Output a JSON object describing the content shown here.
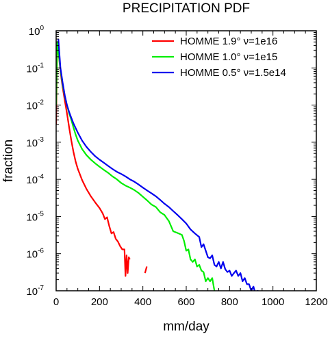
{
  "chart_data": {
    "type": "line",
    "title": "PRECIPITATION PDF",
    "xlabel": "mm/day",
    "ylabel": "fraction",
    "xlim": [
      0,
      1200
    ],
    "ylim": [
      1e-07,
      1
    ],
    "yscale": "log",
    "grid": false,
    "legend_position": "top-right",
    "x_ticks": [
      "0",
      "200",
      "400",
      "600",
      "800",
      "1000",
      "1200"
    ],
    "y_ticks": [
      {
        "base": "10",
        "exp": "0",
        "value": 1
      },
      {
        "base": "10",
        "exp": "-1",
        "value": 0.1
      },
      {
        "base": "10",
        "exp": "-2",
        "value": 0.01
      },
      {
        "base": "10",
        "exp": "-3",
        "value": 0.001
      },
      {
        "base": "10",
        "exp": "-4",
        "value": 0.0001
      },
      {
        "base": "10",
        "exp": "-5",
        "value": 1e-05
      },
      {
        "base": "10",
        "exp": "-6",
        "value": 1e-06
      },
      {
        "base": "10",
        "exp": "-7",
        "value": 1e-07
      }
    ],
    "series": [
      {
        "name": "HOMME 1.9°  ν=1e16",
        "color": "#ff0000",
        "segments": [
          [
            [
              0,
              0.003
            ],
            [
              5,
              0.5
            ],
            [
              10,
              0.3
            ],
            [
              20,
              0.08
            ],
            [
              30,
              0.03
            ],
            [
              40,
              0.013
            ],
            [
              50,
              0.006
            ],
            [
              60,
              0.0025
            ],
            [
              70,
              0.0011
            ],
            [
              80,
              0.00055
            ],
            [
              90,
              0.0003
            ],
            [
              100,
              0.00019
            ],
            [
              120,
              9.5e-05
            ],
            [
              140,
              5.5e-05
            ],
            [
              160,
              3.5e-05
            ],
            [
              180,
              2.4e-05
            ],
            [
              200,
              1.7e-05
            ],
            [
              215,
              1.2e-05
            ],
            [
              225,
              8.5e-06
            ],
            [
              235,
              9.5e-06
            ],
            [
              245,
              5.5e-06
            ],
            [
              255,
              3.5e-06
            ],
            [
              265,
              3.8e-06
            ],
            [
              275,
              2.5e-06
            ],
            [
              285,
              2.1e-06
            ],
            [
              295,
              1.6e-06
            ],
            [
              305,
              1.3e-06
            ],
            [
              315,
              1.3e-06
            ],
            [
              320,
              2.5e-07
            ],
            [
              325,
              9e-07
            ],
            [
              330,
              3e-07
            ],
            [
              335,
              8e-07
            ],
            [
              340,
              7e-07
            ]
          ],
          [
            [
              410,
              3e-07
            ],
            [
              418,
              4.5e-07
            ]
          ]
        ]
      },
      {
        "name": "HOMME 1.0°  ν=1e15",
        "color": "#00ee00",
        "segments": [
          [
            [
              0,
              0.01
            ],
            [
              5,
              0.5
            ],
            [
              10,
              0.3
            ],
            [
              20,
              0.09
            ],
            [
              30,
              0.035
            ],
            [
              40,
              0.017
            ],
            [
              50,
              0.01
            ],
            [
              60,
              0.006
            ],
            [
              70,
              0.004
            ],
            [
              80,
              0.0025
            ],
            [
              90,
              0.0016
            ],
            [
              100,
              0.0011
            ],
            [
              120,
              0.00065
            ],
            [
              140,
              0.00045
            ],
            [
              160,
              0.00034
            ],
            [
              180,
              0.00027
            ],
            [
              200,
              0.00022
            ],
            [
              220,
              0.00018
            ],
            [
              240,
              0.00015
            ],
            [
              260,
              0.00012
            ],
            [
              280,
              0.0001
            ],
            [
              300,
              8e-05
            ],
            [
              320,
              6.8e-05
            ],
            [
              340,
              6e-05
            ],
            [
              360,
              5.2e-05
            ],
            [
              380,
              4.3e-05
            ],
            [
              400,
              3.4e-05
            ],
            [
              420,
              2.7e-05
            ],
            [
              440,
              2.1e-05
            ],
            [
              460,
              1.8e-05
            ],
            [
              480,
              1.3e-05
            ],
            [
              500,
              1.1e-05
            ],
            [
              520,
              7.5e-06
            ],
            [
              540,
              4e-06
            ],
            [
              560,
              3.6e-06
            ],
            [
              580,
              3.2e-06
            ],
            [
              590,
              2.2e-06
            ],
            [
              600,
              1.2e-06
            ],
            [
              610,
              1.3e-06
            ],
            [
              620,
              7e-07
            ],
            [
              630,
              6e-07
            ],
            [
              640,
              7e-07
            ],
            [
              650,
              4.5e-07
            ],
            [
              660,
              5e-07
            ],
            [
              670,
              3.5e-07
            ],
            [
              680,
              3.2e-07
            ],
            [
              690,
              1.8e-07
            ],
            [
              700,
              2.2e-07
            ],
            [
              710,
              1.8e-07
            ],
            [
              720,
              2.2e-07
            ],
            [
              730,
              1e-07
            ]
          ],
          [
            [
              760,
              1e-07
            ],
            [
              765,
              9e-08
            ]
          ]
        ]
      },
      {
        "name": "HOMME 0.5°  ν=1.5e14",
        "color": "#0000ee",
        "segments": [
          [
            [
              10,
              0.6
            ],
            [
              20,
              0.1
            ],
            [
              30,
              0.04
            ],
            [
              40,
              0.018
            ],
            [
              50,
              0.01
            ],
            [
              60,
              0.0065
            ],
            [
              70,
              0.0045
            ],
            [
              80,
              0.0032
            ],
            [
              90,
              0.0024
            ],
            [
              100,
              0.0018
            ],
            [
              120,
              0.0011
            ],
            [
              140,
              0.00075
            ],
            [
              160,
              0.00055
            ],
            [
              180,
              0.00042
            ],
            [
              200,
              0.00034
            ],
            [
              220,
              0.00028
            ],
            [
              240,
              0.00023
            ],
            [
              260,
              0.00019
            ],
            [
              280,
              0.00016
            ],
            [
              300,
              0.00014
            ],
            [
              320,
              0.00012
            ],
            [
              340,
              0.0001
            ],
            [
              360,
              8.7e-05
            ],
            [
              380,
              7.3e-05
            ],
            [
              400,
              6e-05
            ],
            [
              420,
              5e-05
            ],
            [
              440,
              4.2e-05
            ],
            [
              460,
              3.5e-05
            ],
            [
              480,
              2.8e-05
            ],
            [
              500,
              2.2e-05
            ],
            [
              520,
              1.8e-05
            ],
            [
              540,
              1.4e-05
            ],
            [
              560,
              1.1e-05
            ],
            [
              580,
              8.5e-06
            ],
            [
              600,
              6.5e-06
            ],
            [
              620,
              4.5e-06
            ],
            [
              640,
              3.5e-06
            ],
            [
              660,
              2.8e-06
            ],
            [
              670,
              1.5e-06
            ],
            [
              680,
              1.8e-06
            ],
            [
              690,
              1.2e-06
            ],
            [
              700,
              8e-07
            ],
            [
              710,
              7.5e-07
            ],
            [
              720,
              9e-07
            ],
            [
              730,
              5e-07
            ],
            [
              740,
              4.5e-07
            ],
            [
              750,
              6e-07
            ],
            [
              760,
              4e-07
            ],
            [
              770,
              6e-07
            ],
            [
              780,
              3.8e-07
            ],
            [
              790,
              3.2e-07
            ],
            [
              800,
              3.5e-07
            ],
            [
              810,
              2.5e-07
            ],
            [
              820,
              3e-07
            ],
            [
              830,
              3.5e-07
            ],
            [
              840,
              2.5e-07
            ],
            [
              850,
              3e-07
            ],
            [
              860,
              1.8e-07
            ],
            [
              870,
              2.2e-07
            ],
            [
              880,
              1.5e-07
            ],
            [
              890,
              1.5e-07
            ],
            [
              900,
              1e-07
            ],
            [
              910,
              1.3e-07
            ],
            [
              920,
              8e-08
            ],
            [
              930,
              1e-07
            ],
            [
              940,
              7e-08
            ]
          ]
        ]
      }
    ]
  }
}
